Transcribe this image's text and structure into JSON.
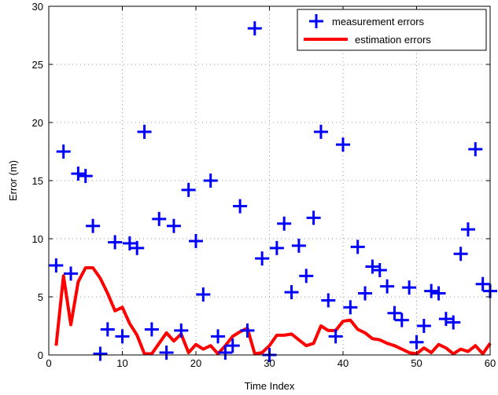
{
  "chart_data": {
    "type": "scatter",
    "xlabel": "Time Index",
    "ylabel": "Error (m)",
    "xlim": [
      0,
      60
    ],
    "ylim": [
      0,
      30
    ],
    "xticks": [
      0,
      10,
      20,
      30,
      40,
      50,
      60
    ],
    "yticks": [
      0,
      5,
      10,
      15,
      20,
      25,
      30
    ],
    "grid": true,
    "legend_position": "top-right",
    "series": [
      {
        "name": "measurement errors",
        "style": "markers-plus",
        "color": "#0000ff",
        "x": [
          1,
          2,
          3,
          4,
          5,
          6,
          7,
          8,
          9,
          10,
          11,
          12,
          13,
          14,
          15,
          16,
          17,
          18,
          19,
          20,
          21,
          22,
          23,
          24,
          25,
          26,
          27,
          28,
          29,
          30,
          31,
          32,
          33,
          34,
          35,
          36,
          37,
          38,
          39,
          40,
          41,
          42,
          43,
          44,
          45,
          46,
          47,
          48,
          49,
          50,
          51,
          52,
          53,
          54,
          55,
          56,
          57,
          58,
          59,
          60
        ],
        "y": [
          7.7,
          17.5,
          7.0,
          15.6,
          15.4,
          11.1,
          0.1,
          2.2,
          9.7,
          1.6,
          9.6,
          9.2,
          19.2,
          2.2,
          11.7,
          0.2,
          11.1,
          2.1,
          14.2,
          9.8,
          5.2,
          15.0,
          1.6,
          0.2,
          0.8,
          12.8,
          2.1,
          28.1,
          8.3,
          0.0,
          9.2,
          11.3,
          5.4,
          9.4,
          6.8,
          11.8,
          19.2,
          4.7,
          1.6,
          18.1,
          4.1,
          9.3,
          5.3,
          7.6,
          7.3,
          5.9,
          3.6,
          3.0,
          5.8,
          1.1,
          2.5,
          5.5,
          5.3,
          3.1,
          2.8,
          8.7,
          10.8,
          17.7,
          6.1,
          5.5
        ]
      },
      {
        "name": "estimation errors",
        "style": "line",
        "color": "#ff0000",
        "x": [
          1,
          2,
          3,
          4,
          5,
          6,
          7,
          8,
          9,
          10,
          11,
          12,
          13,
          14,
          15,
          16,
          17,
          18,
          19,
          20,
          21,
          22,
          23,
          24,
          25,
          26,
          27,
          28,
          29,
          30,
          31,
          32,
          33,
          34,
          35,
          36,
          37,
          38,
          39,
          40,
          41,
          42,
          43,
          44,
          45,
          46,
          47,
          48,
          49,
          50,
          51,
          52,
          53,
          54,
          55,
          56,
          57,
          58,
          59,
          60
        ],
        "y": [
          0.8,
          6.8,
          2.6,
          6.3,
          7.5,
          7.5,
          6.6,
          5.3,
          3.8,
          4.1,
          2.7,
          1.7,
          0.1,
          0.1,
          1.0,
          1.9,
          1.2,
          1.8,
          0.2,
          0.9,
          0.5,
          0.8,
          0.1,
          0.8,
          1.6,
          2.0,
          2.3,
          0.1,
          0.2,
          0.8,
          1.7,
          1.7,
          1.8,
          1.3,
          0.8,
          1.0,
          2.5,
          2.1,
          2.1,
          2.9,
          3.0,
          2.2,
          1.9,
          1.4,
          1.3,
          1.0,
          0.8,
          0.5,
          0.2,
          0.1,
          0.6,
          0.2,
          0.9,
          0.6,
          0.1,
          0.5,
          0.3,
          0.8,
          0.1,
          1.0
        ]
      }
    ]
  }
}
